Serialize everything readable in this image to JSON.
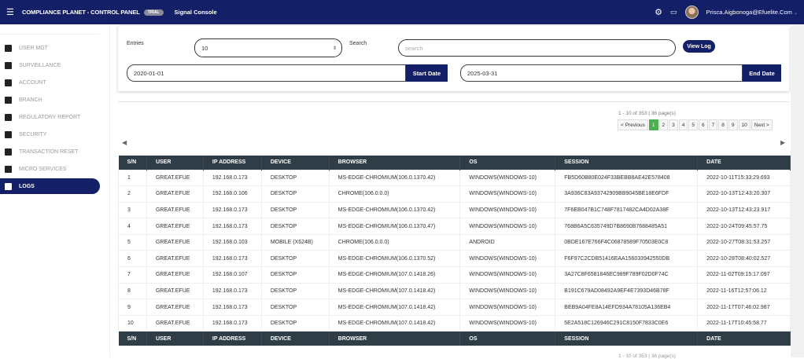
{
  "header": {
    "title": "COMPLIANCE PLANET - CONTROL PANEL",
    "badge": "TRIAL",
    "console": "Signal Console",
    "user": "Prisca.Aigbonoga@Efuelite.Com"
  },
  "sidebar": {
    "items": [
      {
        "label": "USER MGT",
        "icon": "user-icon"
      },
      {
        "label": "SURVEILLANCE",
        "icon": "briefcase-icon"
      },
      {
        "label": "ACCOUNT",
        "icon": "map-icon"
      },
      {
        "label": "BRANCH",
        "icon": "user-circle-icon"
      },
      {
        "label": "REGULATORY REPORT",
        "icon": "file-icon"
      },
      {
        "label": "SECURITY",
        "icon": "shield-icon"
      },
      {
        "label": "TRANSACTION RESET",
        "icon": "grid-icon"
      },
      {
        "label": "MICRO SERVICES",
        "icon": "branch-icon"
      },
      {
        "label": "LOGS",
        "icon": "logs-icon",
        "active": true
      }
    ]
  },
  "filters": {
    "entries_label": "Entries",
    "entries_value": "10",
    "search_label": "Search",
    "search_placeholder": "search",
    "view_log": "View Log",
    "start_date": "2020-01-01",
    "start_btn": "Start Date",
    "end_date": "2025-03-31",
    "end_btn": "End Date"
  },
  "pagination": {
    "info": "1 - 10 of 353 | 36 page(s)",
    "prev": "< Previous",
    "pages": [
      "1",
      "2",
      "3",
      "4",
      "5",
      "6",
      "7",
      "8",
      "9",
      "10"
    ],
    "current": "1",
    "next": "Next >"
  },
  "table": {
    "columns": [
      "S/N",
      "USER",
      "IP ADDRESS",
      "DEVICE",
      "BROWSER",
      "OS",
      "SESSION",
      "DATE"
    ],
    "rows": [
      [
        "1",
        "GREAT.EFUE",
        "192.168.0.173",
        "DESKTOP",
        "MS-EDGE-CHROMIUM(106.0.1370.42)",
        "WINDOWS(WINDOWS-10)",
        "FB5D60B80E024F33BEBB8AE42E578408",
        "2022-10-11T15:33:29.693"
      ],
      [
        "2",
        "GREAT.EFUE",
        "192.168.0.106",
        "DESKTOP",
        "CHROME(106.0.0.0)",
        "WINDOWS(WINDOWS-10)",
        "3A936C83A93742909BB9045BE18E6FDF",
        "2022-10-13T12:43:20.307"
      ],
      [
        "3",
        "GREAT.EFUE",
        "192.168.0.173",
        "DESKTOP",
        "MS-EDGE-CHROMIUM(106.0.1370.42)",
        "WINDOWS(WINDOWS-10)",
        "7F6EB047B1C748F7817482CA4D02A38F",
        "2022-10-13T12:43:23.917"
      ],
      [
        "4",
        "GREAT.EFUE",
        "192.168.0.173",
        "DESKTOP",
        "MS-EDGE-CHROMIUM(106.0.1370.47)",
        "WINDOWS(WINDOWS-10)",
        "768B6A5C635749D7B8690B7688485A51",
        "2022-10-24T09:45:57.75"
      ],
      [
        "5",
        "GREAT.EFUE",
        "192.168.0.103",
        "MOBILE (X624B)",
        "CHROME(106.0.0.0)",
        "ANDROID",
        "0BDE167E766F4C06878589F70503E0C8",
        "2022-10-27T08:31:53.257"
      ],
      [
        "6",
        "GREAT.EFUE",
        "192.168.0.173",
        "DESKTOP",
        "MS-EDGE-CHROMIUM(106.0.1370.52)",
        "WINDOWS(WINDOWS-10)",
        "F6F97C2CDB51416EAA156033942550DB",
        "2022-10-28T08:40:02.527"
      ],
      [
        "7",
        "GREAT.EFUE",
        "192.168.0.107",
        "DESKTOP",
        "MS-EDGE-CHROMIUM(107.0.1418.26)",
        "WINDOWS(WINDOWS-10)",
        "3A27C8F6581846EC989F789F02D0F74C",
        "2022-11-02T09:15:17.097"
      ],
      [
        "8",
        "GREAT.EFUE",
        "192.168.0.173",
        "DESKTOP",
        "MS-EDGE-CHROMIUM(107.0.1418.42)",
        "WINDOWS(WINDOWS-10)",
        "B191C679AD08492A9EF4E7393D46B78F",
        "2022-11-16T12:57:06.12"
      ],
      [
        "9",
        "GREAT.EFUE",
        "192.168.0.173",
        "DESKTOP",
        "MS-EDGE-CHROMIUM(107.0.1418.42)",
        "WINDOWS(WINDOWS-10)",
        "BEB9A04FE8A14EFD934A78105A136EB4",
        "2022-11-17T07:46:02.987"
      ],
      [
        "10",
        "GREAT.EFUE",
        "192.168.0.173",
        "DESKTOP",
        "MS-EDGE-CHROMIUM(107.0.1418.42)",
        "WINDOWS(WINDOWS-10)",
        "5E2A518C126946C291C8150F7833C0E6",
        "2022-11-17T10:45:58.77"
      ]
    ]
  }
}
